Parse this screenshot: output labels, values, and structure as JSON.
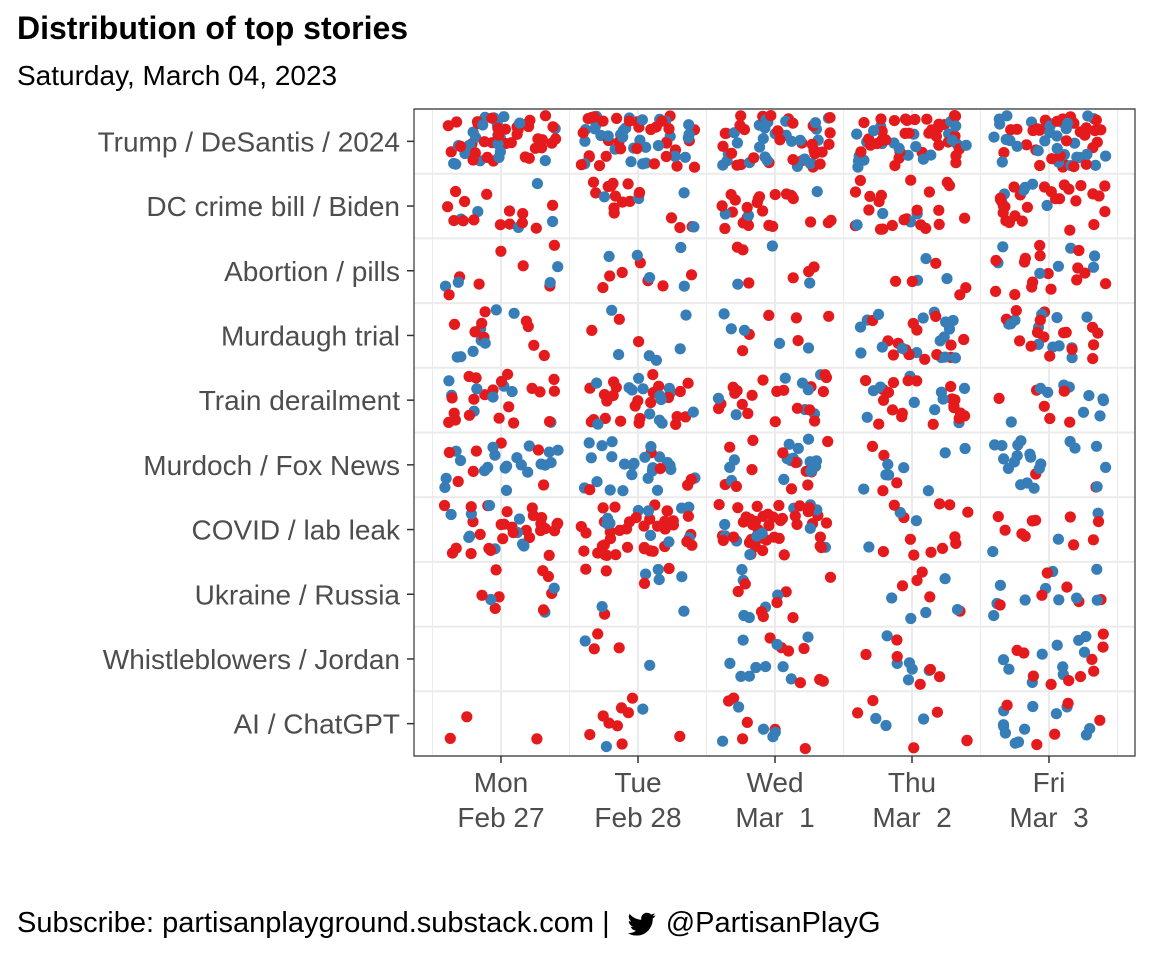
{
  "title": "Distribution of top stories",
  "subtitle": "Saturday, March 04, 2023",
  "caption_prefix": "Subscribe: partisanplayground.substack.com | ",
  "caption_handle": "@PartisanPlayG",
  "caption_icon": "twitter-bird-icon",
  "colors": {
    "red": "#e41a1c",
    "blue": "#377eb8",
    "grid": "#ebebeb",
    "panel_border": "#333333"
  },
  "chart_data": {
    "type": "scatter",
    "style": "jittered strip plot",
    "x_ticks": [
      {
        "day": "Mon",
        "date": "Feb 27"
      },
      {
        "day": "Tue",
        "date": "Feb 28"
      },
      {
        "day": "Wed",
        "date": "Mar  1"
      },
      {
        "day": "Thu",
        "date": "Mar  2"
      },
      {
        "day": "Fri",
        "date": "Mar  3"
      }
    ],
    "categories": [
      "Trump / DeSantis / 2024",
      "DC crime bill / Biden",
      "Abortion / pills",
      "Murdaugh trial",
      "Train derailment",
      "Murdoch / Fox News",
      "COVID / lab leak",
      "Ukraine / Russia",
      "Whistleblowers / Jordan",
      "AI / ChatGPT"
    ],
    "series_colors": [
      "#e41a1c",
      "#377eb8"
    ],
    "counts": [
      [
        [
          36,
          24
        ],
        [
          34,
          30
        ],
        [
          30,
          30
        ],
        [
          34,
          22
        ],
        [
          32,
          30
        ]
      ],
      [
        [
          14,
          5
        ],
        [
          15,
          5
        ],
        [
          22,
          4
        ],
        [
          22,
          4
        ],
        [
          26,
          6
        ]
      ],
      [
        [
          7,
          4
        ],
        [
          7,
          5
        ],
        [
          6,
          3
        ],
        [
          5,
          3
        ],
        [
          16,
          7
        ]
      ],
      [
        [
          9,
          8
        ],
        [
          3,
          6
        ],
        [
          6,
          5
        ],
        [
          14,
          18
        ],
        [
          16,
          12
        ]
      ],
      [
        [
          20,
          8
        ],
        [
          24,
          14
        ],
        [
          19,
          8
        ],
        [
          20,
          10
        ],
        [
          6,
          10
        ]
      ],
      [
        [
          7,
          20
        ],
        [
          5,
          24
        ],
        [
          12,
          16
        ],
        [
          4,
          8
        ],
        [
          2,
          20
        ]
      ],
      [
        [
          28,
          10
        ],
        [
          38,
          10
        ],
        [
          40,
          12
        ],
        [
          12,
          3
        ],
        [
          10,
          3
        ]
      ],
      [
        [
          8,
          3
        ],
        [
          5,
          6
        ],
        [
          8,
          6
        ],
        [
          5,
          5
        ],
        [
          6,
          10
        ]
      ],
      [
        [
          0,
          0
        ],
        [
          3,
          2
        ],
        [
          7,
          10
        ],
        [
          6,
          6
        ],
        [
          10,
          10
        ]
      ],
      [
        [
          3,
          0
        ],
        [
          9,
          2
        ],
        [
          6,
          5
        ],
        [
          6,
          3
        ],
        [
          5,
          12
        ]
      ]
    ],
    "grid": true,
    "legend": "none"
  }
}
